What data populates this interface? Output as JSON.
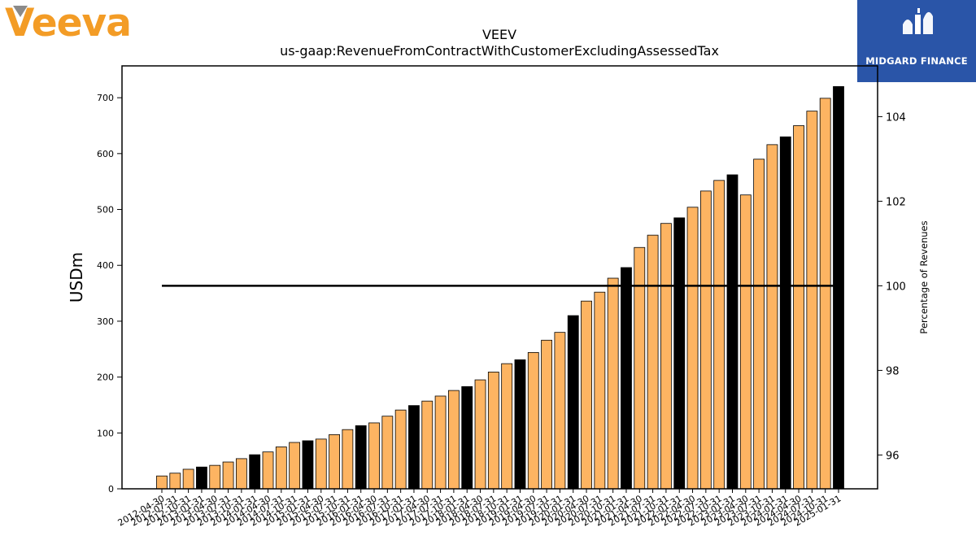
{
  "logo": {
    "text": "Veeva",
    "color": "#f39c26",
    "mark_color": "#8a8a8a"
  },
  "badge": {
    "text": "MIDGARD FINANCE",
    "background": "#2a55a8"
  },
  "chart_data": {
    "type": "bar",
    "title": "VEEV",
    "subtitle": "us-gaap:RevenueFromContractWithCustomerExcludingAssessedTax",
    "ylabel": "USDm",
    "y2label": "Percentage of Revenues",
    "ylim": [
      0,
      757
    ],
    "y2lim": [
      95.2,
      105.2
    ],
    "yticks": [
      0,
      100,
      200,
      300,
      400,
      500,
      600,
      700
    ],
    "y2ticks": [
      96,
      98,
      100,
      102,
      104
    ],
    "bar_color": "#fdb462",
    "highlight_color": "#000000",
    "line_color": "#000000",
    "grid": false,
    "categories": [
      "2012-04-30",
      "2012-07-31",
      "2012-10-31",
      "2013-01-31",
      "2013-04-30",
      "2013-07-31",
      "2013-10-31",
      "2014-01-31",
      "2014-04-30",
      "2014-07-31",
      "2014-10-31",
      "2015-01-31",
      "2015-04-30",
      "2015-07-31",
      "2015-10-31",
      "2016-01-31",
      "2016-04-30",
      "2016-07-31",
      "2016-10-31",
      "2017-01-31",
      "2017-04-30",
      "2017-07-31",
      "2017-10-31",
      "2018-01-31",
      "2018-04-30",
      "2018-07-31",
      "2018-10-31",
      "2019-01-31",
      "2019-04-30",
      "2019-07-31",
      "2019-10-31",
      "2020-01-31",
      "2020-04-30",
      "2020-07-31",
      "2020-10-31",
      "2021-01-31",
      "2021-04-30",
      "2021-07-31",
      "2021-10-31",
      "2022-01-31",
      "2022-04-30",
      "2022-07-31",
      "2022-10-31",
      "2023-01-31",
      "2023-04-30",
      "2023-07-31",
      "2023-10-31",
      "2024-01-31",
      "2024-04-30",
      "2024-07-31",
      "2024-10-31",
      "2025-01-31"
    ],
    "series": [
      {
        "values": [
          23,
          28,
          35,
          39,
          42,
          48,
          54,
          61,
          66,
          75,
          83,
          86,
          89,
          97,
          106,
          113,
          118,
          130,
          141,
          149,
          157,
          166,
          176,
          183,
          195,
          209,
          224,
          231,
          244,
          266,
          280,
          310,
          336,
          352,
          377,
          396,
          432,
          454,
          475,
          485,
          504,
          533,
          552,
          562,
          526,
          590,
          616,
          630,
          650,
          676,
          699,
          720
        ]
      },
      {
        "values": [
          100,
          100,
          100,
          100,
          100,
          100,
          100,
          100,
          100,
          100,
          100,
          100,
          100,
          100,
          100,
          100,
          100,
          100,
          100,
          100,
          100,
          100,
          100,
          100,
          100,
          100,
          100,
          100,
          100,
          100,
          100,
          100,
          100,
          100,
          100,
          100,
          100,
          100,
          100,
          100,
          100,
          100,
          100,
          100,
          100,
          100,
          100,
          100,
          100,
          100,
          100,
          100
        ]
      }
    ]
  }
}
